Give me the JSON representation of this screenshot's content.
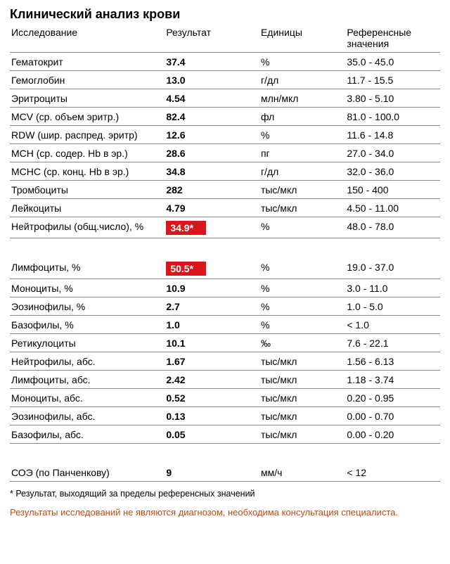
{
  "title": "Клинический анализ крови",
  "columns": [
    "Исследование",
    "Результат",
    "Единицы",
    "Референсные значения"
  ],
  "rows": [
    {
      "name": "Гематокрит",
      "result": "37.4",
      "unit": "%",
      "ref": "35.0 - 45.0",
      "flag": false
    },
    {
      "name": "Гемоглобин",
      "result": "13.0",
      "unit": "г/дл",
      "ref": "11.7 - 15.5",
      "flag": false
    },
    {
      "name": "Эритроциты",
      "result": "4.54",
      "unit": "млн/мкл",
      "ref": "3.80 - 5.10",
      "flag": false
    },
    {
      "name": "MCV (ср. объем эритр.)",
      "result": "82.4",
      "unit": "фл",
      "ref": "81.0 - 100.0",
      "flag": false
    },
    {
      "name": "RDW (шир. распред. эритр)",
      "result": "12.6",
      "unit": "%",
      "ref": "11.6 - 14.8",
      "flag": false
    },
    {
      "name": "MCH (ср. содер. Hb в эр.)",
      "result": "28.6",
      "unit": "пг",
      "ref": "27.0 - 34.0",
      "flag": false
    },
    {
      "name": "MCHC (ср. конц. Hb в эр.)",
      "result": "34.8",
      "unit": "г/дл",
      "ref": "32.0 - 36.0",
      "flag": false
    },
    {
      "name": "Тромбоциты",
      "result": "282",
      "unit": "тыс/мкл",
      "ref": "150 - 400",
      "flag": false
    },
    {
      "name": "Лейкоциты",
      "result": "4.79",
      "unit": "тыс/мкл",
      "ref": "4.50 - 11.00",
      "flag": false
    },
    {
      "name": "Нейтрофилы (общ.число), %",
      "result": "34.9*",
      "unit": "%",
      "ref": "48.0 - 78.0",
      "flag": true
    },
    {
      "gap": true
    },
    {
      "name": "Лимфоциты, %",
      "result": "50.5*",
      "unit": "%",
      "ref": "19.0 - 37.0",
      "flag": true
    },
    {
      "name": "Моноциты, %",
      "result": "10.9",
      "unit": "%",
      "ref": "3.0 - 11.0",
      "flag": false
    },
    {
      "name": "Эозинофилы, %",
      "result": "2.7",
      "unit": "%",
      "ref": "1.0 - 5.0",
      "flag": false
    },
    {
      "name": "Базофилы, %",
      "result": "1.0",
      "unit": "%",
      "ref": "< 1.0",
      "flag": false
    },
    {
      "name": "Ретикулоциты",
      "result": "10.1",
      "unit": "‰",
      "ref": "7.6 - 22.1",
      "flag": false
    },
    {
      "name": "Нейтрофилы, абс.",
      "result": "1.67",
      "unit": "тыс/мкл",
      "ref": "1.56 - 6.13",
      "flag": false
    },
    {
      "name": "Лимфоциты, абс.",
      "result": "2.42",
      "unit": "тыс/мкл",
      "ref": "1.18 - 3.74",
      "flag": false
    },
    {
      "name": "Моноциты, абс.",
      "result": "0.52",
      "unit": "тыс/мкл",
      "ref": "0.20 - 0.95",
      "flag": false
    },
    {
      "name": "Эозинофилы, абс.",
      "result": "0.13",
      "unit": "тыс/мкл",
      "ref": "0.00 - 0.70",
      "flag": false
    },
    {
      "name": "Базофилы, абс.",
      "result": "0.05",
      "unit": "тыс/мкл",
      "ref": "0.00 - 0.20",
      "flag": false
    },
    {
      "gap": true
    },
    {
      "name": "СОЭ (по Панченкову)",
      "result": "9",
      "unit": "мм/ч",
      "ref": "< 12",
      "flag": false
    }
  ],
  "footnote": "* Результат, выходящий за пределы референсных значений",
  "disclaimer": "Результаты исследований не являются диагнозом, необходима консультация специалиста.",
  "colors": {
    "flag_bg": "#d8171c",
    "flag_text": "#ffffff",
    "disclaimer": "#c24a13",
    "border": "#888888"
  }
}
